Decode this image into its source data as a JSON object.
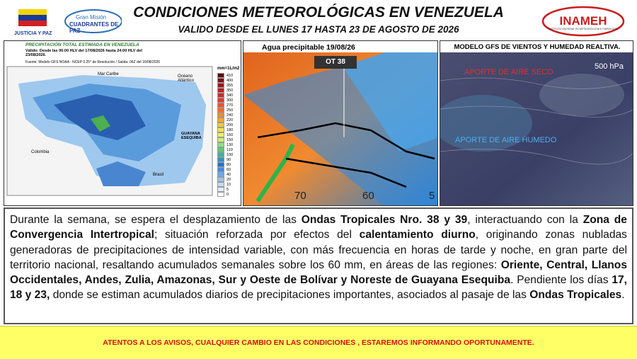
{
  "header": {
    "title": "CONDICIONES METEOROLÓGICAS EN VENEZUELA",
    "subtitle": "VALIDO DESDE EL LUNES 17 HASTA 23 DE AGOSTO DE 2026",
    "left_logo": {
      "motto": "JUSTICIA Y PAZ",
      "mission_line1": "Gran Misión",
      "mission_line2": "CUADRANTES DE PAZ"
    },
    "right_logo": {
      "name": "INAMEH",
      "full_name": "INSTITUTO NACIONAL DE METEOROLOGÍA E HIDROLOGÍA"
    }
  },
  "panels": [
    {
      "title": "PRECIPITACIÓN TOTAL ESTIMADA EN VENEZUELA",
      "validity": "Válido: Desde las 00:00 HLV del 17/08/2026 hasta 24:00 HLV del 23/08/2026.",
      "source": "Fuente: Modelo GFS NOAA - NCEP 0.25° de Resolución / Salida: 06Z del 16/08/2026",
      "legend_title": "mm=1L/m2",
      "legend_values": [
        410,
        400,
        355,
        350,
        340,
        300,
        270,
        250,
        240,
        220,
        200,
        180,
        160,
        150,
        130,
        110,
        100,
        90,
        80,
        60,
        40,
        20,
        10,
        5,
        0
      ],
      "labels": [
        "Mar Caribe",
        "Océano Atlántico",
        "Colombia",
        "GUAYANA ESEQUIBA",
        "Brasil"
      ]
    },
    {
      "title": "Agua precipitable 19/08/26",
      "tag": "OT 38",
      "labels": [
        "70",
        "60",
        "5"
      ]
    },
    {
      "title": "MODELO GFS DE VIENTOS Y HUMEDAD REALTIVA.",
      "labels": [
        "APORTE DE AIRE SECO",
        "500 hPa",
        "APORTE DE AIRE HUMEDO"
      ]
    }
  ],
  "body": {
    "segments": [
      {
        "text": "Durante la semana, se espera el desplazamiento de las ",
        "bold": false
      },
      {
        "text": "Ondas Tropicales Nro. 38 y 39",
        "bold": true
      },
      {
        "text": ", interactuando con la ",
        "bold": false
      },
      {
        "text": "Zona de Convergencia Intertropical",
        "bold": true
      },
      {
        "text": "; situación reforzada por efectos del ",
        "bold": false
      },
      {
        "text": "calentamiento diurno",
        "bold": true
      },
      {
        "text": ", originando zonas nubladas generadoras de precipitaciones de intensidad variable, con más frecuencia en horas de tarde y noche, en gran parte del territorio nacional, resaltando acumulados semanales sobre los 60 mm, en áreas de las regiones: ",
        "bold": false
      },
      {
        "text": "Oriente, Central, Llanos Occidentales, Andes, Zulia, Amazonas, Sur y Oeste de Bolívar y Noreste de Guayana Esequiba",
        "bold": true
      },
      {
        "text": ". Pendiente los días ",
        "bold": false
      },
      {
        "text": "17, 18 y 23,",
        "bold": true
      },
      {
        "text": " donde se estiman acumulados diarios de precipitaciones importantes, asociados al pasaje de las ",
        "bold": false
      },
      {
        "text": "Ondas Tropicales",
        "bold": true
      },
      {
        "text": ".",
        "bold": false
      }
    ]
  },
  "footer": {
    "text": "ATENTOS A LOS AVISOS, CUALQUIER CAMBIO EN LAS CONDICIONES , ESTAREMOS INFORMANDO OPORTUNAMENTE."
  }
}
